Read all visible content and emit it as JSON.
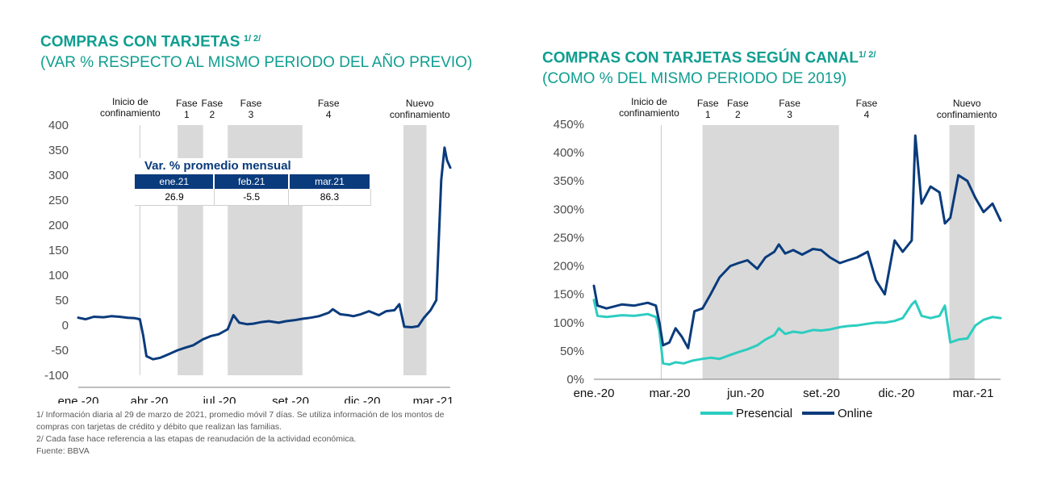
{
  "left": {
    "title_main": "COMPRAS CON TARJETAS",
    "title_sup": "1/ 2/",
    "title_sub": "(VAR % RESPECTO AL MISMO PERIODO DEL AÑO PREVIO)",
    "table": {
      "title": "Var. % promedio mensual",
      "headers": [
        "ene.21",
        "feb.21",
        "mar.21"
      ],
      "values": [
        "26.9",
        "-5.5",
        "86.3"
      ]
    },
    "notes": [
      "1/ Información diaria al 29 de marzo de 2021, promedio móvil 7 días. Se utiliza información de los montos de",
      "compras con tarjetas de crédito y débito que realizan las familias.",
      "2/ Cada fase hace referencia a las etapas de reanudación de la actividad económica.",
      "Fuente: BBVA"
    ]
  },
  "right": {
    "title_main": "COMPRAS CON TARJETAS SEGÚN CANAL",
    "title_sup": "1/ 2/",
    "title_sub": "(COMO % DEL MISMO PERIODO DE 2019)"
  },
  "colors": {
    "teal": "#0f9e90",
    "navy": "#0a3b7c",
    "presencial": "#2ccdc0",
    "band": "#d9d9d9",
    "axis": "#7f7f7f"
  },
  "chart_data": [
    {
      "type": "line",
      "title": "COMPRAS CON TARJETAS",
      "subtitle": "(VAR % RESPECTO AL MISMO PERIODO DEL AÑO PREVIO)",
      "xlabel": "",
      "ylabel": "",
      "x_tick_labels": [
        "ene.-20",
        "abr.-20",
        "jul.-20",
        "set.-20",
        "dic.-20",
        "mar.-21"
      ],
      "y_ticks": [
        "400",
        "350",
        "300",
        "250",
        "200",
        "150",
        "100",
        "50",
        "0",
        "-50",
        "-100"
      ],
      "ylim": [
        -100,
        400
      ],
      "x_start": "2020-01-01",
      "x_end": "2021-03-29",
      "event_line": {
        "date": "2020-03-16",
        "label": "Inicio de confinamiento"
      },
      "phases": [
        {
          "label": "Fase 1",
          "start": "2020-05-01",
          "end": "2020-06-01"
        },
        {
          "label": "Fase 2",
          "start": "2020-06-01",
          "end": "2020-07-01"
        },
        {
          "label": "Fase 3",
          "start": "2020-07-01",
          "end": "2020-09-30"
        },
        {
          "label": "Fase 4",
          "start": "2020-09-30",
          "end": "2020-09-30"
        },
        {
          "label": "Nuevo confinamiento",
          "start": "2021-01-31",
          "end": "2021-02-28"
        }
      ],
      "series": [
        {
          "color": "#0a3b7c",
          "points": [
            [
              "2020-01-01",
              15
            ],
            [
              "2020-01-10",
              12
            ],
            [
              "2020-01-20",
              17
            ],
            [
              "2020-02-01",
              16
            ],
            [
              "2020-02-10",
              18
            ],
            [
              "2020-02-20",
              17
            ],
            [
              "2020-03-01",
              15
            ],
            [
              "2020-03-10",
              14
            ],
            [
              "2020-03-16",
              12
            ],
            [
              "2020-03-20",
              -20
            ],
            [
              "2020-03-24",
              -62
            ],
            [
              "2020-04-01",
              -68
            ],
            [
              "2020-04-10",
              -65
            ],
            [
              "2020-04-20",
              -58
            ],
            [
              "2020-05-01",
              -50
            ],
            [
              "2020-05-10",
              -45
            ],
            [
              "2020-05-20",
              -40
            ],
            [
              "2020-06-01",
              -28
            ],
            [
              "2020-06-10",
              -22
            ],
            [
              "2020-06-20",
              -18
            ],
            [
              "2020-07-01",
              -8
            ],
            [
              "2020-07-08",
              20
            ],
            [
              "2020-07-15",
              5
            ],
            [
              "2020-07-25",
              2
            ],
            [
              "2020-08-01",
              3
            ],
            [
              "2020-08-10",
              6
            ],
            [
              "2020-08-20",
              8
            ],
            [
              "2020-09-01",
              5
            ],
            [
              "2020-09-10",
              8
            ],
            [
              "2020-09-20",
              10
            ],
            [
              "2020-10-01",
              13
            ],
            [
              "2020-10-10",
              15
            ],
            [
              "2020-10-20",
              18
            ],
            [
              "2020-11-01",
              25
            ],
            [
              "2020-11-06",
              32
            ],
            [
              "2020-11-15",
              22
            ],
            [
              "2020-11-25",
              20
            ],
            [
              "2020-12-01",
              18
            ],
            [
              "2020-12-10",
              22
            ],
            [
              "2020-12-20",
              28
            ],
            [
              "2021-01-01",
              20
            ],
            [
              "2021-01-10",
              28
            ],
            [
              "2021-01-20",
              30
            ],
            [
              "2021-01-26",
              42
            ],
            [
              "2021-02-01",
              -3
            ],
            [
              "2021-02-10",
              -4
            ],
            [
              "2021-02-18",
              -2
            ],
            [
              "2021-02-25",
              15
            ],
            [
              "2021-03-05",
              30
            ],
            [
              "2021-03-12",
              50
            ],
            [
              "2021-03-18",
              290
            ],
            [
              "2021-03-22",
              355
            ],
            [
              "2021-03-25",
              330
            ],
            [
              "2021-03-29",
              315
            ]
          ]
        }
      ]
    },
    {
      "type": "line",
      "title": "COMPRAS CON TARJETAS SEGÚN CANAL",
      "subtitle": "(COMO % DEL MISMO PERIODO DE 2019)",
      "xlabel": "",
      "ylabel": "",
      "x_tick_labels": [
        "ene.-20",
        "mar.-20",
        "jun.-20",
        "set.-20",
        "dic.-20",
        "mar.-21"
      ],
      "y_ticks": [
        "450%",
        "400%",
        "350%",
        "300%",
        "250%",
        "200%",
        "150%",
        "100%",
        "50%",
        "0%"
      ],
      "ylim": [
        0,
        450
      ],
      "x_start": "2020-01-01",
      "x_end": "2021-03-29",
      "event_line": {
        "date": "2020-03-16",
        "label": "Inicio de confinamiento"
      },
      "phases": [
        {
          "label": "Fase 1",
          "start": "2020-05-01",
          "end": "2020-06-01"
        },
        {
          "label": "Fase 2",
          "start": "2020-06-01",
          "end": "2020-07-01"
        },
        {
          "label": "Fase 3",
          "start": "2020-07-01",
          "end": "2020-09-30"
        },
        {
          "label": "Fase 4",
          "start": "2020-09-30",
          "end": "2020-09-30"
        },
        {
          "label": "Nuevo confinamiento",
          "start": "2021-01-31",
          "end": "2021-02-28"
        }
      ],
      "legend": "bottom",
      "series": [
        {
          "name": "Presencial",
          "color": "#2ccdc0",
          "points": [
            [
              "2020-01-01",
              140
            ],
            [
              "2020-01-05",
              112
            ],
            [
              "2020-01-15",
              110
            ],
            [
              "2020-02-01",
              113
            ],
            [
              "2020-02-15",
              112
            ],
            [
              "2020-03-01",
              115
            ],
            [
              "2020-03-10",
              110
            ],
            [
              "2020-03-14",
              85
            ],
            [
              "2020-03-18",
              28
            ],
            [
              "2020-03-25",
              26
            ],
            [
              "2020-04-01",
              30
            ],
            [
              "2020-04-10",
              28
            ],
            [
              "2020-04-20",
              33
            ],
            [
              "2020-05-01",
              36
            ],
            [
              "2020-05-10",
              38
            ],
            [
              "2020-05-20",
              36
            ],
            [
              "2020-06-01",
              43
            ],
            [
              "2020-06-10",
              48
            ],
            [
              "2020-06-20",
              53
            ],
            [
              "2020-07-01",
              60
            ],
            [
              "2020-07-10",
              70
            ],
            [
              "2020-07-20",
              78
            ],
            [
              "2020-07-25",
              90
            ],
            [
              "2020-08-01",
              80
            ],
            [
              "2020-08-10",
              84
            ],
            [
              "2020-08-20",
              82
            ],
            [
              "2020-09-01",
              87
            ],
            [
              "2020-09-10",
              86
            ],
            [
              "2020-09-20",
              88
            ],
            [
              "2020-10-01",
              92
            ],
            [
              "2020-10-10",
              94
            ],
            [
              "2020-10-20",
              95
            ],
            [
              "2020-11-01",
              98
            ],
            [
              "2020-11-10",
              100
            ],
            [
              "2020-11-20",
              100
            ],
            [
              "2020-12-01",
              103
            ],
            [
              "2020-12-10",
              108
            ],
            [
              "2020-12-20",
              132
            ],
            [
              "2020-12-24",
              138
            ],
            [
              "2020-12-31",
              112
            ],
            [
              "2021-01-10",
              108
            ],
            [
              "2021-01-20",
              112
            ],
            [
              "2021-01-26",
              130
            ],
            [
              "2021-02-01",
              65
            ],
            [
              "2021-02-10",
              70
            ],
            [
              "2021-02-20",
              72
            ],
            [
              "2021-03-01",
              95
            ],
            [
              "2021-03-10",
              105
            ],
            [
              "2021-03-20",
              110
            ],
            [
              "2021-03-29",
              108
            ]
          ]
        },
        {
          "name": "Online",
          "color": "#0a3b7c",
          "points": [
            [
              "2020-01-01",
              165
            ],
            [
              "2020-01-05",
              130
            ],
            [
              "2020-01-15",
              125
            ],
            [
              "2020-02-01",
              132
            ],
            [
              "2020-02-15",
              130
            ],
            [
              "2020-03-01",
              135
            ],
            [
              "2020-03-10",
              130
            ],
            [
              "2020-03-14",
              100
            ],
            [
              "2020-03-18",
              60
            ],
            [
              "2020-03-25",
              65
            ],
            [
              "2020-04-01",
              90
            ],
            [
              "2020-04-08",
              75
            ],
            [
              "2020-04-15",
              55
            ],
            [
              "2020-04-22",
              120
            ],
            [
              "2020-05-01",
              125
            ],
            [
              "2020-05-10",
              150
            ],
            [
              "2020-05-20",
              180
            ],
            [
              "2020-06-01",
              200
            ],
            [
              "2020-06-10",
              205
            ],
            [
              "2020-06-20",
              210
            ],
            [
              "2020-07-01",
              195
            ],
            [
              "2020-07-10",
              215
            ],
            [
              "2020-07-20",
              225
            ],
            [
              "2020-07-25",
              238
            ],
            [
              "2020-08-01",
              222
            ],
            [
              "2020-08-10",
              228
            ],
            [
              "2020-08-20",
              220
            ],
            [
              "2020-09-01",
              230
            ],
            [
              "2020-09-10",
              228
            ],
            [
              "2020-09-20",
              215
            ],
            [
              "2020-10-01",
              205
            ],
            [
              "2020-10-10",
              210
            ],
            [
              "2020-10-20",
              215
            ],
            [
              "2020-11-01",
              225
            ],
            [
              "2020-11-10",
              175
            ],
            [
              "2020-11-20",
              150
            ],
            [
              "2020-12-01",
              245
            ],
            [
              "2020-12-10",
              225
            ],
            [
              "2020-12-20",
              245
            ],
            [
              "2020-12-24",
              430
            ],
            [
              "2020-12-31",
              310
            ],
            [
              "2021-01-10",
              340
            ],
            [
              "2021-01-20",
              330
            ],
            [
              "2021-01-26",
              275
            ],
            [
              "2021-02-01",
              285
            ],
            [
              "2021-02-10",
              360
            ],
            [
              "2021-02-20",
              350
            ],
            [
              "2021-03-01",
              320
            ],
            [
              "2021-03-10",
              295
            ],
            [
              "2021-03-20",
              310
            ],
            [
              "2021-03-29",
              280
            ]
          ]
        }
      ]
    }
  ]
}
